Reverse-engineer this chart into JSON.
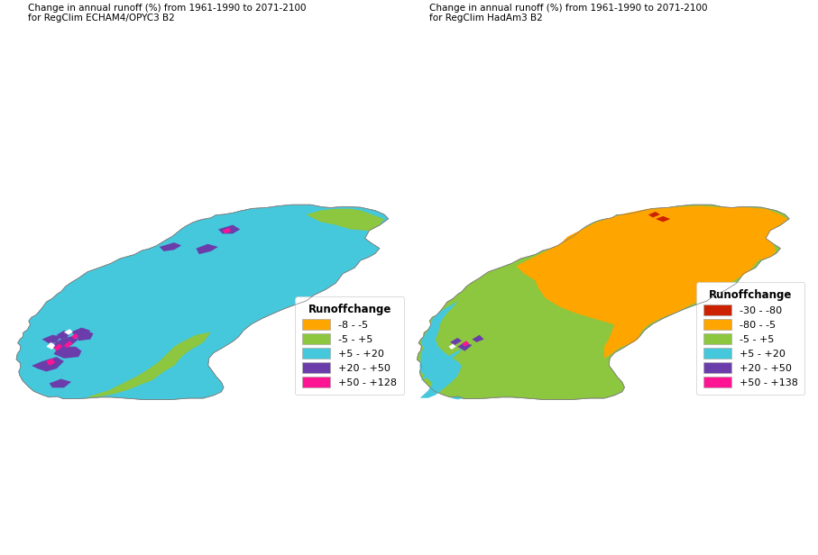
{
  "title_left": "Change in annual runoff (%) from 1961-1990 to 2071-2100\nfor RegClim ECHAM4/OPYC3 B2",
  "title_right": "Change in annual runoff (%) from 1961-1990 to 2071-2100\nfor RegClim HadAm3 B2",
  "legend_title": "Runoffchange",
  "legend_left": {
    "labels": [
      "-8 - -5",
      "-5 - +5",
      "+5 - +20",
      "+20 - +50",
      "+50 - +128"
    ],
    "colors": [
      "#FFA500",
      "#8DC63F",
      "#45C8DC",
      "#6A3DAB",
      "#FF1493"
    ]
  },
  "legend_right": {
    "labels": [
      "-30 - -80",
      "-80 - -5",
      "-5 - +5",
      "+5 - +20",
      "+20 - +50",
      "+50 - +138"
    ],
    "colors": [
      "#CC2200",
      "#FFA500",
      "#8DC63F",
      "#45C8DC",
      "#6A3DAB",
      "#FF1493"
    ]
  },
  "background_color": "#FFFFFF",
  "title_fontsize": 7.5,
  "legend_fontsize": 8
}
